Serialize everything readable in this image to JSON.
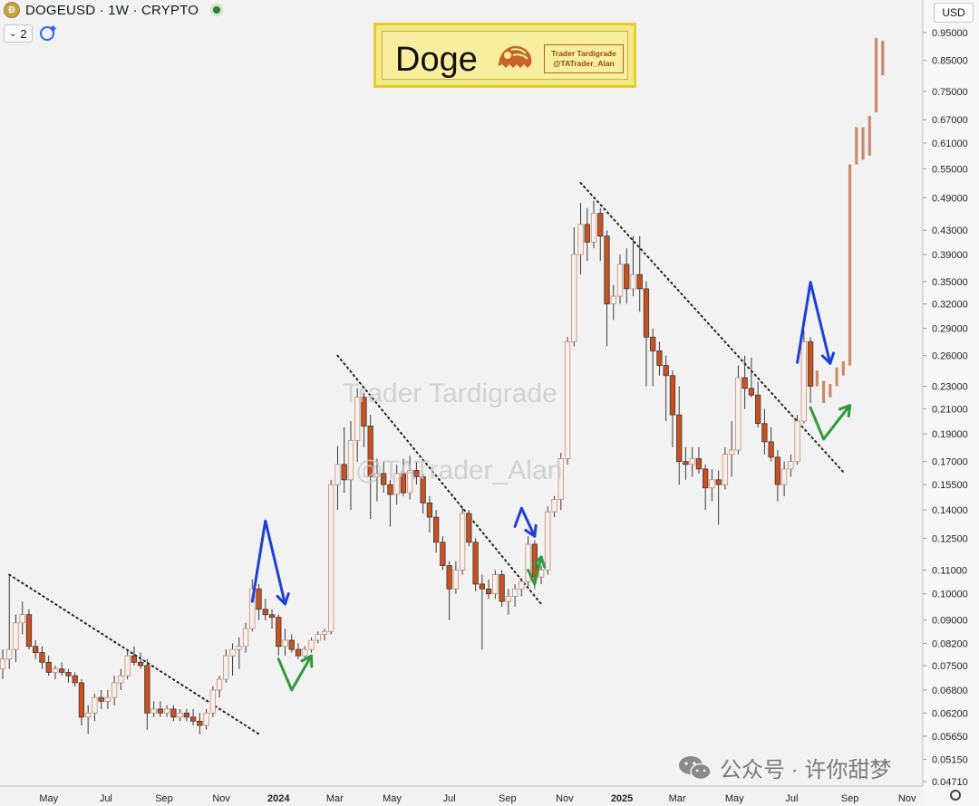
{
  "header": {
    "symbol": "DOGEUSD · 1W · CRYPTO",
    "layer_count": "2",
    "currency": "USD"
  },
  "banner": {
    "title": "Doge",
    "tag_line1": "Trader Tardigrade",
    "tag_line2": "@TATrader_Alan"
  },
  "watermarks": {
    "w1": "Trader Tardigrade",
    "w2": "@TATrader_Alan"
  },
  "footer_watermark": "公众号 · 许你甜梦",
  "colors": {
    "background": "#f2f2f2",
    "up_candle": "#c98a6e",
    "down_candle": "#c9501f",
    "projection": "#c98a6e",
    "blue_arrow": "#1e3fd8",
    "green_arrow": "#2e9a3a",
    "trendline": "#222222"
  },
  "icons": {
    "coin": "doge-coin-icon",
    "refresh": "refresh-icon",
    "settings": "gear-icon",
    "wechat": "wechat-icon"
  },
  "chart_data": {
    "type": "candlestick",
    "scale": "log",
    "y_ticks": [
      0.95,
      0.85,
      0.75,
      0.67,
      0.61,
      0.55,
      0.49,
      0.43,
      0.39,
      0.35,
      0.32,
      0.29,
      0.26,
      0.23,
      0.21,
      0.19,
      0.17,
      0.155,
      0.14,
      0.125,
      0.11,
      0.1,
      0.09,
      0.082,
      0.075,
      0.068,
      0.062,
      0.0565,
      0.0515,
      0.0471
    ],
    "y_tick_labels": [
      "0.95000",
      "0.85000",
      "0.75000",
      "0.67000",
      "0.61000",
      "0.55000",
      "0.49000",
      "0.43000",
      "0.39000",
      "0.35000",
      "0.32000",
      "0.29000",
      "0.26000",
      "0.23000",
      "0.21000",
      "0.19000",
      "0.17000",
      "0.15500",
      "0.14000",
      "0.12500",
      "0.11000",
      "0.10000",
      "0.09000",
      "0.08200",
      "0.07500",
      "0.06800",
      "0.06200",
      "0.05650",
      "0.05150",
      "0.04710"
    ],
    "x_labels": [
      "May",
      "Jul",
      "Sep",
      "Nov",
      "2024",
      "Mar",
      "May",
      "Jul",
      "Sep",
      "Nov",
      "2025",
      "Mar",
      "May",
      "Jul",
      "Sep",
      "Nov"
    ],
    "x_bold": [
      "2024",
      "2025"
    ],
    "x_range": [
      "2023-03-13",
      "2025-11-10"
    ],
    "y_range": [
      0.0455,
      1.0
    ],
    "trendlines": [
      {
        "from": [
          "2023-03-20",
          0.108
        ],
        "to": [
          "2023-12-11",
          0.057
        ]
      },
      {
        "from": [
          "2024-03-04",
          0.26
        ],
        "to": [
          "2024-10-07",
          0.096
        ]
      },
      {
        "from": [
          "2024-11-18",
          0.52
        ],
        "to": [
          "2025-08-25",
          0.163
        ]
      }
    ],
    "candles": [
      [
        "2023-03-13",
        0.074,
        0.08,
        0.071,
        0.077
      ],
      [
        "2023-03-20",
        0.077,
        0.108,
        0.074,
        0.08
      ],
      [
        "2023-03-27",
        0.08,
        0.092,
        0.076,
        0.089
      ],
      [
        "2023-04-03",
        0.089,
        0.097,
        0.085,
        0.092
      ],
      [
        "2023-04-10",
        0.092,
        0.094,
        0.08,
        0.081
      ],
      [
        "2023-04-17",
        0.081,
        0.083,
        0.077,
        0.079
      ],
      [
        "2023-04-24",
        0.079,
        0.081,
        0.074,
        0.076
      ],
      [
        "2023-05-01",
        0.076,
        0.078,
        0.072,
        0.073
      ],
      [
        "2023-05-08",
        0.073,
        0.075,
        0.071,
        0.074
      ],
      [
        "2023-05-15",
        0.074,
        0.076,
        0.072,
        0.073
      ],
      [
        "2023-05-22",
        0.073,
        0.074,
        0.07,
        0.072
      ],
      [
        "2023-05-29",
        0.072,
        0.073,
        0.069,
        0.07
      ],
      [
        "2023-06-05",
        0.07,
        0.071,
        0.059,
        0.061
      ],
      [
        "2023-06-12",
        0.061,
        0.064,
        0.057,
        0.062
      ],
      [
        "2023-06-19",
        0.062,
        0.067,
        0.06,
        0.066
      ],
      [
        "2023-06-26",
        0.066,
        0.068,
        0.063,
        0.065
      ],
      [
        "2023-07-03",
        0.065,
        0.068,
        0.063,
        0.066
      ],
      [
        "2023-07-10",
        0.066,
        0.072,
        0.064,
        0.07
      ],
      [
        "2023-07-17",
        0.07,
        0.074,
        0.068,
        0.072
      ],
      [
        "2023-07-24",
        0.072,
        0.08,
        0.071,
        0.078
      ],
      [
        "2023-07-31",
        0.078,
        0.081,
        0.075,
        0.076
      ],
      [
        "2023-08-07",
        0.076,
        0.079,
        0.074,
        0.075
      ],
      [
        "2023-08-14",
        0.075,
        0.077,
        0.058,
        0.062
      ],
      [
        "2023-08-21",
        0.062,
        0.065,
        0.061,
        0.063
      ],
      [
        "2023-08-28",
        0.063,
        0.065,
        0.061,
        0.062
      ],
      [
        "2023-09-04",
        0.062,
        0.064,
        0.061,
        0.063
      ],
      [
        "2023-09-11",
        0.063,
        0.064,
        0.06,
        0.061
      ],
      [
        "2023-09-18",
        0.061,
        0.063,
        0.06,
        0.062
      ],
      [
        "2023-09-25",
        0.062,
        0.063,
        0.06,
        0.061
      ],
      [
        "2023-10-02",
        0.061,
        0.063,
        0.059,
        0.06
      ],
      [
        "2023-10-09",
        0.06,
        0.062,
        0.057,
        0.059
      ],
      [
        "2023-10-16",
        0.059,
        0.063,
        0.058,
        0.062
      ],
      [
        "2023-10-23",
        0.062,
        0.069,
        0.061,
        0.068
      ],
      [
        "2023-10-30",
        0.068,
        0.072,
        0.066,
        0.071
      ],
      [
        "2023-11-06",
        0.071,
        0.08,
        0.07,
        0.078
      ],
      [
        "2023-11-13",
        0.078,
        0.082,
        0.072,
        0.08
      ],
      [
        "2023-11-20",
        0.08,
        0.084,
        0.074,
        0.081
      ],
      [
        "2023-11-27",
        0.081,
        0.089,
        0.079,
        0.087
      ],
      [
        "2023-12-04",
        0.087,
        0.106,
        0.086,
        0.102
      ],
      [
        "2023-12-11",
        0.102,
        0.104,
        0.09,
        0.094
      ],
      [
        "2023-12-18",
        0.094,
        0.098,
        0.09,
        0.092
      ],
      [
        "2023-12-25",
        0.092,
        0.094,
        0.087,
        0.091
      ],
      [
        "2024-01-01",
        0.091,
        0.092,
        0.078,
        0.081
      ],
      [
        "2024-01-08",
        0.081,
        0.087,
        0.078,
        0.083
      ],
      [
        "2024-01-15",
        0.083,
        0.085,
        0.079,
        0.08
      ],
      [
        "2024-01-22",
        0.08,
        0.082,
        0.077,
        0.078
      ],
      [
        "2024-01-29",
        0.078,
        0.081,
        0.077,
        0.08
      ],
      [
        "2024-02-05",
        0.08,
        0.084,
        0.079,
        0.083
      ],
      [
        "2024-02-12",
        0.083,
        0.086,
        0.082,
        0.085
      ],
      [
        "2024-02-19",
        0.085,
        0.087,
        0.083,
        0.086
      ],
      [
        "2024-02-26",
        0.086,
        0.158,
        0.085,
        0.155
      ],
      [
        "2024-03-04",
        0.155,
        0.181,
        0.14,
        0.168
      ],
      [
        "2024-03-11",
        0.168,
        0.195,
        0.15,
        0.158
      ],
      [
        "2024-03-18",
        0.158,
        0.2,
        0.14,
        0.185
      ],
      [
        "2024-03-25",
        0.185,
        0.228,
        0.17,
        0.22
      ],
      [
        "2024-04-01",
        0.22,
        0.224,
        0.18,
        0.196
      ],
      [
        "2024-04-08",
        0.196,
        0.205,
        0.135,
        0.16
      ],
      [
        "2024-04-15",
        0.16,
        0.172,
        0.145,
        0.162
      ],
      [
        "2024-04-22",
        0.162,
        0.17,
        0.15,
        0.155
      ],
      [
        "2024-04-29",
        0.155,
        0.158,
        0.131,
        0.149
      ],
      [
        "2024-05-06",
        0.149,
        0.168,
        0.143,
        0.162
      ],
      [
        "2024-05-13",
        0.162,
        0.172,
        0.148,
        0.15
      ],
      [
        "2024-05-20",
        0.15,
        0.174,
        0.146,
        0.164
      ],
      [
        "2024-05-27",
        0.164,
        0.17,
        0.155,
        0.16
      ],
      [
        "2024-06-03",
        0.16,
        0.162,
        0.138,
        0.144
      ],
      [
        "2024-06-10",
        0.144,
        0.148,
        0.128,
        0.136
      ],
      [
        "2024-06-17",
        0.136,
        0.14,
        0.118,
        0.123
      ],
      [
        "2024-06-24",
        0.123,
        0.126,
        0.11,
        0.112
      ],
      [
        "2024-07-01",
        0.112,
        0.114,
        0.09,
        0.102
      ],
      [
        "2024-07-08",
        0.102,
        0.114,
        0.1,
        0.11
      ],
      [
        "2024-07-15",
        0.11,
        0.142,
        0.108,
        0.138
      ],
      [
        "2024-07-22",
        0.138,
        0.14,
        0.121,
        0.123
      ],
      [
        "2024-07-29",
        0.123,
        0.125,
        0.101,
        0.104
      ],
      [
        "2024-08-05",
        0.104,
        0.108,
        0.08,
        0.102
      ],
      [
        "2024-08-12",
        0.102,
        0.106,
        0.098,
        0.1
      ],
      [
        "2024-08-19",
        0.1,
        0.11,
        0.098,
        0.108
      ],
      [
        "2024-08-26",
        0.108,
        0.11,
        0.095,
        0.097
      ],
      [
        "2024-09-02",
        0.097,
        0.102,
        0.092,
        0.099
      ],
      [
        "2024-09-09",
        0.099,
        0.104,
        0.095,
        0.102
      ],
      [
        "2024-09-16",
        0.102,
        0.106,
        0.099,
        0.105
      ],
      [
        "2024-09-23",
        0.105,
        0.126,
        0.103,
        0.122
      ],
      [
        "2024-09-30",
        0.122,
        0.124,
        0.102,
        0.107
      ],
      [
        "2024-10-07",
        0.107,
        0.112,
        0.104,
        0.11
      ],
      [
        "2024-10-14",
        0.11,
        0.142,
        0.108,
        0.139
      ],
      [
        "2024-10-21",
        0.139,
        0.148,
        0.136,
        0.146
      ],
      [
        "2024-10-28",
        0.146,
        0.176,
        0.14,
        0.172
      ],
      [
        "2024-11-04",
        0.172,
        0.28,
        0.168,
        0.275
      ],
      [
        "2024-11-11",
        0.275,
        0.435,
        0.27,
        0.39
      ],
      [
        "2024-11-18",
        0.39,
        0.48,
        0.36,
        0.44
      ],
      [
        "2024-11-25",
        0.44,
        0.47,
        0.38,
        0.41
      ],
      [
        "2024-12-02",
        0.41,
        0.484,
        0.4,
        0.46
      ],
      [
        "2024-12-09",
        0.46,
        0.47,
        0.38,
        0.42
      ],
      [
        "2024-12-16",
        0.42,
        0.43,
        0.27,
        0.32
      ],
      [
        "2024-12-23",
        0.32,
        0.345,
        0.3,
        0.33
      ],
      [
        "2024-12-30",
        0.33,
        0.39,
        0.32,
        0.375
      ],
      [
        "2025-01-06",
        0.375,
        0.4,
        0.32,
        0.34
      ],
      [
        "2025-01-13",
        0.34,
        0.42,
        0.33,
        0.36
      ],
      [
        "2025-01-20",
        0.36,
        0.42,
        0.31,
        0.34
      ],
      [
        "2025-01-27",
        0.34,
        0.35,
        0.23,
        0.28
      ],
      [
        "2025-02-03",
        0.28,
        0.29,
        0.23,
        0.265
      ],
      [
        "2025-02-10",
        0.265,
        0.275,
        0.24,
        0.25
      ],
      [
        "2025-02-17",
        0.25,
        0.26,
        0.2,
        0.24
      ],
      [
        "2025-02-24",
        0.24,
        0.245,
        0.18,
        0.205
      ],
      [
        "2025-03-03",
        0.205,
        0.23,
        0.155,
        0.17
      ],
      [
        "2025-03-10",
        0.17,
        0.18,
        0.158,
        0.168
      ],
      [
        "2025-03-17",
        0.168,
        0.18,
        0.16,
        0.172
      ],
      [
        "2025-03-24",
        0.172,
        0.18,
        0.162,
        0.165
      ],
      [
        "2025-03-31",
        0.165,
        0.168,
        0.14,
        0.153
      ],
      [
        "2025-04-07",
        0.153,
        0.165,
        0.145,
        0.158
      ],
      [
        "2025-04-14",
        0.158,
        0.164,
        0.132,
        0.155
      ],
      [
        "2025-04-21",
        0.155,
        0.18,
        0.152,
        0.175
      ],
      [
        "2025-04-28",
        0.175,
        0.2,
        0.16,
        0.178
      ],
      [
        "2025-05-05",
        0.178,
        0.25,
        0.175,
        0.238
      ],
      [
        "2025-05-12",
        0.238,
        0.26,
        0.21,
        0.228
      ],
      [
        "2025-05-19",
        0.228,
        0.258,
        0.22,
        0.222
      ],
      [
        "2025-05-26",
        0.222,
        0.234,
        0.195,
        0.198
      ],
      [
        "2025-06-02",
        0.198,
        0.21,
        0.175,
        0.184
      ],
      [
        "2025-06-09",
        0.184,
        0.195,
        0.17,
        0.173
      ],
      [
        "2025-06-16",
        0.173,
        0.178,
        0.145,
        0.155
      ],
      [
        "2025-06-23",
        0.155,
        0.17,
        0.148,
        0.165
      ],
      [
        "2025-06-30",
        0.165,
        0.175,
        0.16,
        0.17
      ],
      [
        "2025-07-07",
        0.17,
        0.205,
        0.168,
        0.2
      ],
      [
        "2025-07-14",
        0.2,
        0.288,
        0.198,
        0.275
      ],
      [
        "2025-07-21",
        0.275,
        0.28,
        0.215,
        0.23
      ]
    ],
    "projection_bars": [
      [
        "2025-07-28",
        0.23,
        0.245
      ],
      [
        "2025-08-04",
        0.215,
        0.235
      ],
      [
        "2025-08-11",
        0.22,
        0.232
      ],
      [
        "2025-08-18",
        0.23,
        0.248
      ],
      [
        "2025-08-25",
        0.24,
        0.254
      ],
      [
        "2025-09-01",
        0.25,
        0.56
      ],
      [
        "2025-09-08",
        0.56,
        0.65
      ],
      [
        "2025-09-15",
        0.57,
        0.65
      ],
      [
        "2025-09-22",
        0.58,
        0.68
      ],
      [
        "2025-09-29",
        0.69,
        0.93
      ],
      [
        "2025-10-06",
        0.8,
        0.92
      ]
    ],
    "arrows": [
      {
        "color": "blue",
        "points": [
          [
            "2023-12-04",
            0.097
          ],
          [
            "2023-12-18",
            0.134
          ],
          [
            "2024-01-08",
            0.096
          ]
        ],
        "head": "down"
      },
      {
        "color": "green",
        "points": [
          [
            "2024-01-01",
            0.077
          ],
          [
            "2024-01-15",
            0.068
          ],
          [
            "2024-02-05",
            0.078
          ]
        ],
        "head": "up"
      },
      {
        "color": "blue",
        "points": [
          [
            "2024-09-09",
            0.131
          ],
          [
            "2024-09-16",
            0.141
          ],
          [
            "2024-09-30",
            0.126
          ]
        ],
        "head": "down"
      },
      {
        "color": "green",
        "points": [
          [
            "2024-09-23",
            0.11
          ],
          [
            "2024-09-30",
            0.104
          ],
          [
            "2024-10-07",
            0.116
          ]
        ],
        "head": "up"
      },
      {
        "color": "blue",
        "points": [
          [
            "2025-07-07",
            0.253
          ],
          [
            "2025-07-21",
            0.349
          ],
          [
            "2025-08-11",
            0.252
          ]
        ],
        "head": "down"
      },
      {
        "color": "green",
        "points": [
          [
            "2025-07-21",
            0.211
          ],
          [
            "2025-08-04",
            0.186
          ],
          [
            "2025-09-01",
            0.213
          ]
        ],
        "head": "up"
      }
    ]
  }
}
